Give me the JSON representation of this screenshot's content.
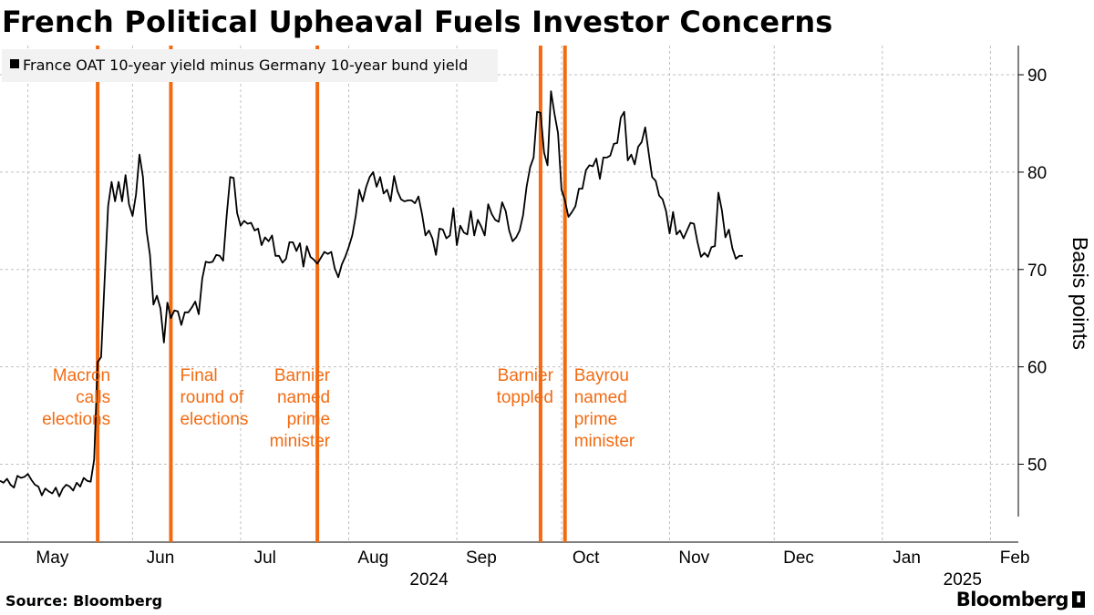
{
  "title": "French Political Upheaval Fuels Investor Concerns",
  "source": "Source: Bloomberg",
  "brand": "Bloomberg",
  "colors": {
    "line": "#000000",
    "event": "#f26b13",
    "grid": "#bfbfbf",
    "legend_bg": "#f2f2f2"
  },
  "chart_data": {
    "type": "line",
    "title": "French Political Upheaval Fuels Investor Concerns",
    "ylabel": "Basis points",
    "xlabel": "",
    "ylim": [
      42,
      93
    ],
    "yticks": [
      50,
      60,
      70,
      80,
      90
    ],
    "xlim": [
      0,
      292
    ],
    "month_ticks": [
      {
        "label": "May",
        "day": 0
      },
      {
        "label": "Jun",
        "day": 31
      },
      {
        "label": "Jul",
        "day": 61
      },
      {
        "label": "Aug",
        "day": 92
      },
      {
        "label": "Sep",
        "day": 123
      },
      {
        "label": "Oct",
        "day": 153
      },
      {
        "label": "Nov",
        "day": 184
      },
      {
        "label": "Dec",
        "day": 214
      },
      {
        "label": "Jan",
        "day": 245
      },
      {
        "label": "Feb",
        "day": 276
      }
    ],
    "year_labels": [
      {
        "label": "2024",
        "day": 123
      },
      {
        "label": "2025",
        "day": 276
      }
    ],
    "gridlines_x_days": [
      8,
      38,
      69,
      100,
      131,
      161,
      192,
      222,
      253,
      284
    ],
    "x_unit": "days since 2024-04-28",
    "series": [
      {
        "name": "France OAT 10-year yield minus Germany 10-year bund yield",
        "points": [
          [
            0,
            48.3
          ],
          [
            1,
            48.1
          ],
          [
            2,
            48.5
          ],
          [
            3,
            47.9
          ],
          [
            4,
            47.6
          ],
          [
            5,
            48.8
          ],
          [
            6,
            48.6
          ],
          [
            7,
            48.7
          ],
          [
            8,
            49.0
          ],
          [
            9,
            48.4
          ],
          [
            10,
            47.9
          ],
          [
            11,
            47.7
          ],
          [
            12,
            46.8
          ],
          [
            13,
            47.5
          ],
          [
            14,
            47.2
          ],
          [
            15,
            47.0
          ],
          [
            16,
            47.6
          ],
          [
            17,
            46.7
          ],
          [
            18,
            47.5
          ],
          [
            19,
            47.9
          ],
          [
            20,
            47.7
          ],
          [
            21,
            47.3
          ],
          [
            22,
            48.1
          ],
          [
            23,
            47.7
          ],
          [
            24,
            48.6
          ],
          [
            25,
            48.3
          ],
          [
            26,
            48.2
          ],
          [
            27,
            50.5
          ],
          [
            28,
            60.5
          ],
          [
            29,
            61.0
          ],
          [
            30,
            69.0
          ],
          [
            31,
            76.5
          ],
          [
            32,
            79.0
          ],
          [
            33,
            77.0
          ],
          [
            34,
            79.0
          ],
          [
            35,
            77.0
          ],
          [
            36,
            79.7
          ],
          [
            37,
            76.7
          ],
          [
            38,
            75.5
          ],
          [
            39,
            77.7
          ],
          [
            40,
            81.8
          ],
          [
            41,
            79.5
          ],
          [
            42,
            74.0
          ],
          [
            43,
            71.5
          ],
          [
            44,
            66.4
          ],
          [
            45,
            67.3
          ],
          [
            46,
            66.0
          ],
          [
            47,
            62.5
          ],
          [
            48,
            66.6
          ],
          [
            49,
            65.0
          ],
          [
            50,
            65.8
          ],
          [
            51,
            65.7
          ],
          [
            52,
            64.3
          ],
          [
            53,
            65.6
          ],
          [
            54,
            65.6
          ],
          [
            55,
            66.1
          ],
          [
            56,
            66.7
          ],
          [
            57,
            65.4
          ],
          [
            58,
            69.1
          ],
          [
            59,
            70.8
          ],
          [
            60,
            70.7
          ],
          [
            61,
            70.8
          ],
          [
            62,
            71.5
          ],
          [
            63,
            71.4
          ],
          [
            64,
            70.9
          ],
          [
            65,
            75.5
          ],
          [
            66,
            79.5
          ],
          [
            67,
            79.4
          ],
          [
            68,
            75.8
          ],
          [
            69,
            74.5
          ],
          [
            70,
            75.0
          ],
          [
            71,
            74.7
          ],
          [
            72,
            74.8
          ],
          [
            73,
            74.0
          ],
          [
            74,
            74.2
          ],
          [
            75,
            72.5
          ],
          [
            76,
            73.3
          ],
          [
            77,
            72.9
          ],
          [
            78,
            73.5
          ],
          [
            79,
            71.4
          ],
          [
            80,
            71.4
          ],
          [
            81,
            70.7
          ],
          [
            82,
            71.1
          ],
          [
            83,
            72.8
          ],
          [
            84,
            72.8
          ],
          [
            85,
            71.9
          ],
          [
            86,
            72.7
          ],
          [
            87,
            70.3
          ],
          [
            88,
            72.4
          ],
          [
            89,
            71.3
          ],
          [
            90,
            71.0
          ],
          [
            91,
            70.6
          ],
          [
            92,
            71.2
          ],
          [
            93,
            71.8
          ],
          [
            94,
            71.6
          ],
          [
            95,
            71.8
          ],
          [
            96,
            70.1
          ],
          [
            97,
            69.2
          ],
          [
            98,
            70.5
          ],
          [
            99,
            71.3
          ],
          [
            100,
            72.3
          ],
          [
            101,
            73.5
          ],
          [
            102,
            75.5
          ],
          [
            103,
            78.2
          ],
          [
            104,
            77.0
          ],
          [
            105,
            78.5
          ],
          [
            106,
            79.5
          ],
          [
            107,
            80.0
          ],
          [
            108,
            78.5
          ],
          [
            109,
            79.5
          ],
          [
            110,
            77.8
          ],
          [
            111,
            78.2
          ],
          [
            112,
            77.0
          ],
          [
            113,
            79.6
          ],
          [
            114,
            78.0
          ],
          [
            115,
            77.2
          ],
          [
            116,
            77.0
          ],
          [
            117,
            77.1
          ],
          [
            118,
            77.1
          ],
          [
            119,
            76.8
          ],
          [
            120,
            77.5
          ],
          [
            121,
            75.7
          ],
          [
            122,
            73.5
          ],
          [
            123,
            74.0
          ],
          [
            124,
            73.2
          ],
          [
            125,
            71.5
          ],
          [
            126,
            74.2
          ],
          [
            127,
            74.1
          ],
          [
            128,
            73.2
          ],
          [
            129,
            73.5
          ],
          [
            130,
            76.3
          ],
          [
            131,
            72.5
          ],
          [
            132,
            74.5
          ],
          [
            133,
            73.8
          ],
          [
            134,
            73.6
          ],
          [
            135,
            76.0
          ],
          [
            136,
            73.5
          ],
          [
            137,
            75.1
          ],
          [
            138,
            74.4
          ],
          [
            139,
            73.5
          ],
          [
            140,
            76.7
          ],
          [
            141,
            75.7
          ],
          [
            142,
            75.1
          ],
          [
            143,
            74.9
          ],
          [
            144,
            76.9
          ],
          [
            145,
            76.0
          ],
          [
            146,
            74.0
          ],
          [
            147,
            72.9
          ],
          [
            148,
            73.3
          ],
          [
            149,
            74.0
          ],
          [
            150,
            75.6
          ],
          [
            151,
            78.5
          ],
          [
            152,
            80.5
          ],
          [
            153,
            81.5
          ],
          [
            154,
            86.2
          ],
          [
            155,
            86.1
          ],
          [
            156,
            82.0
          ],
          [
            157,
            80.7
          ],
          [
            158,
            88.3
          ],
          [
            159,
            86.0
          ],
          [
            160,
            84.0
          ],
          [
            161,
            78.2
          ],
          [
            162,
            77.1
          ],
          [
            163,
            75.4
          ],
          [
            164,
            75.9
          ],
          [
            165,
            76.5
          ],
          [
            166,
            78.3
          ],
          [
            167,
            78.3
          ],
          [
            168,
            80.2
          ],
          [
            169,
            80.7
          ],
          [
            170,
            80.6
          ],
          [
            171,
            81.4
          ],
          [
            172,
            79.3
          ],
          [
            173,
            81.5
          ],
          [
            174,
            81.5
          ],
          [
            175,
            81.7
          ],
          [
            176,
            82.9
          ],
          [
            177,
            83.0
          ],
          [
            178,
            85.6
          ],
          [
            179,
            86.2
          ],
          [
            180,
            81.2
          ],
          [
            181,
            81.8
          ],
          [
            182,
            80.8
          ],
          [
            183,
            82.6
          ],
          [
            184,
            83.1
          ],
          [
            185,
            84.6
          ],
          [
            186,
            82.0
          ],
          [
            187,
            79.5
          ],
          [
            188,
            79.1
          ],
          [
            189,
            77.6
          ],
          [
            190,
            77.2
          ],
          [
            191,
            76.0
          ],
          [
            192,
            73.7
          ],
          [
            193,
            75.9
          ],
          [
            194,
            73.6
          ],
          [
            195,
            74.0
          ],
          [
            196,
            73.2
          ],
          [
            197,
            74.0
          ],
          [
            198,
            74.8
          ],
          [
            199,
            74.7
          ],
          [
            200,
            72.8
          ],
          [
            201,
            71.3
          ],
          [
            202,
            71.7
          ],
          [
            203,
            71.3
          ],
          [
            204,
            72.3
          ],
          [
            205,
            72.4
          ],
          [
            206,
            77.9
          ],
          [
            207,
            76.1
          ],
          [
            208,
            73.3
          ],
          [
            209,
            74.1
          ],
          [
            210,
            72.2
          ],
          [
            211,
            71.1
          ],
          [
            212,
            71.4
          ],
          [
            213,
            71.4
          ]
        ]
      }
    ],
    "events": [
      {
        "day": 28,
        "label_lines": [
          "Macron",
          "calls",
          "elections"
        ],
        "align": "end"
      },
      {
        "day": 49,
        "label_lines": [
          "Final",
          "round of",
          "elections"
        ],
        "align": "start"
      },
      {
        "day": 91,
        "label_lines": [
          "Barnier",
          "named",
          "prime",
          "minister"
        ],
        "align": "end"
      },
      {
        "day": 155,
        "label_lines": [
          "Barnier",
          "toppled"
        ],
        "align": "end"
      },
      {
        "day": 162,
        "label_lines": [
          "Bayrou",
          "named",
          "prime",
          "minister"
        ],
        "align": "start"
      }
    ]
  }
}
